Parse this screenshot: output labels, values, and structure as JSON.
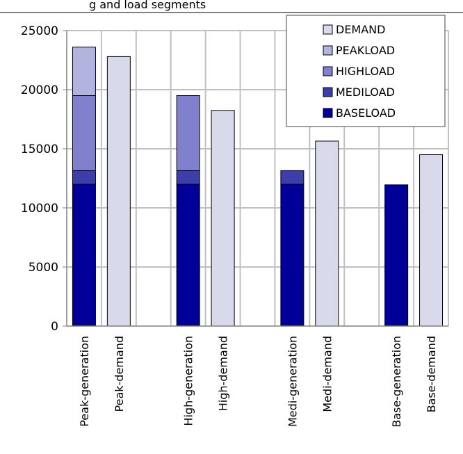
{
  "page": {
    "clipped_title": "g and load segments"
  },
  "chart_data": {
    "type": "bar",
    "stacked": true,
    "categories": [
      "Peak-generation",
      "Peak-demand",
      "",
      "High-generation",
      "High-demand",
      "",
      "Medi-generation",
      "Medi-demand",
      "",
      "Base-generation",
      "Base-demand"
    ],
    "series": [
      {
        "name": "BASELOAD",
        "color": "#000099",
        "values": [
          12000,
          0,
          0,
          12000,
          0,
          0,
          12000,
          0,
          0,
          11950,
          0
        ]
      },
      {
        "name": "MEDILOAD",
        "color": "#3e3eaa",
        "values": [
          1150,
          0,
          0,
          1150,
          0,
          0,
          1150,
          0,
          0,
          0,
          0
        ]
      },
      {
        "name": "HIGHLOAD",
        "color": "#8080cc",
        "values": [
          6350,
          0,
          0,
          6350,
          0,
          0,
          0,
          0,
          0,
          0,
          0
        ]
      },
      {
        "name": "PEAKLOAD",
        "color": "#b3b3e0",
        "values": [
          4100,
          0,
          0,
          0,
          0,
          0,
          0,
          0,
          0,
          0,
          0
        ]
      },
      {
        "name": "DEMAND",
        "color": "#d9d9ec",
        "values": [
          0,
          22800,
          0,
          0,
          18250,
          0,
          0,
          15650,
          0,
          0,
          14500
        ]
      }
    ],
    "legend_order": [
      "DEMAND",
      "PEAKLOAD",
      "HIGHLOAD",
      "MEDILOAD",
      "BASELOAD"
    ],
    "legend_position": "top-right",
    "ylim": [
      0,
      25000
    ],
    "yticks": [
      "0",
      "5000",
      "10000",
      "15000",
      "20000",
      "25000"
    ],
    "grid": true,
    "xlabel": "",
    "ylabel": ""
  }
}
